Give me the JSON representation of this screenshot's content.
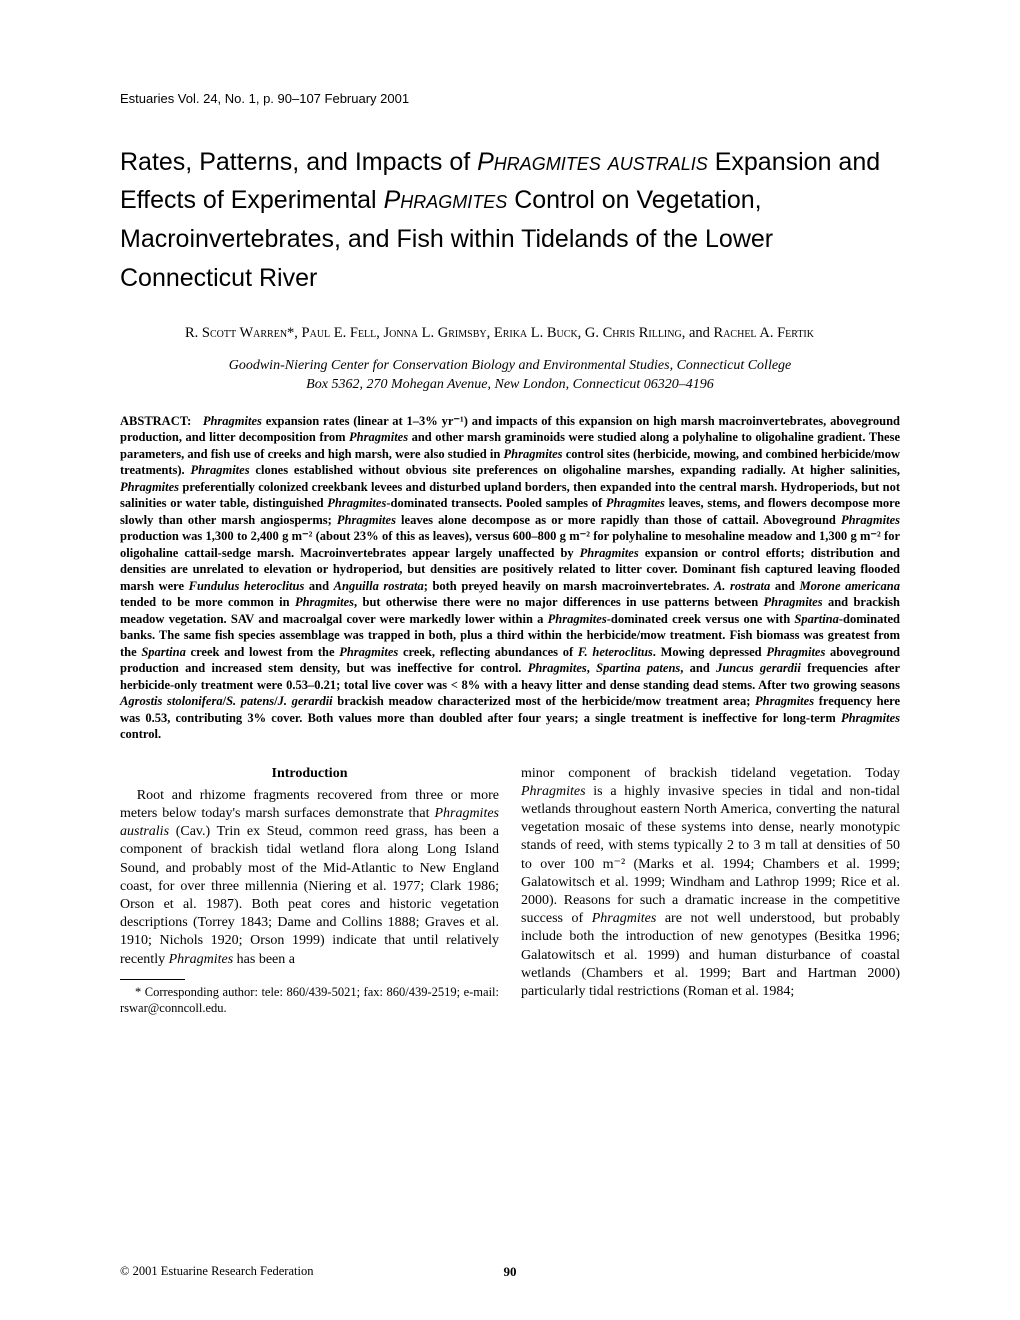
{
  "running_head": "Estuaries   Vol. 24, No. 1, p. 90–107   February 2001",
  "title_parts": {
    "p1": "Rates, Patterns, and Impacts of ",
    "sc1": "Phragmites australis",
    "p2": " Expansion and Effects of Experimental ",
    "sc2": "Phragmites",
    "p3": " Control on Vegetation, Macroinvertebrates, and Fish within Tidelands of the Lower Connecticut River"
  },
  "authors_line": "R. Scott Warren*, Paul E. Fell, Jonna L. Grimsby, Erika L. Buck, G. Chris Rilling, ",
  "authors_and": "and",
  "authors_last": " Rachel A. Fertik",
  "affiliation_l1": "Goodwin-Niering Center for Conservation Biology and Environmental Studies, Connecticut College",
  "affiliation_l2": "Box 5362, 270 Mohegan Avenue, New London, Connecticut 06320–4196",
  "abstract_label": "ABSTRACT:",
  "abstract_body": "Phragmites expansion rates (linear at 1–3% yr⁻¹) and impacts of this expansion on high marsh macroinvertebrates, aboveground production, and litter decomposition from Phragmites and other marsh graminoids were studied along a polyhaline to oligohaline gradient. These parameters, and fish use of creeks and high marsh, were also studied in Phragmites control sites (herbicide, mowing, and combined herbicide/mow treatments). Phragmites clones established without obvious site preferences on oligohaline marshes, expanding radially. At higher salinities, Phragmites preferentially colonized creekbank levees and disturbed upland borders, then expanded into the central marsh. Hydroperiods, but not salinities or water table, distinguished Phragmites-dominated transects. Pooled samples of Phragmites leaves, stems, and flowers decompose more slowly than other marsh angiosperms; Phragmites leaves alone decompose as or more rapidly than those of cattail. Aboveground Phragmites production was 1,300 to 2,400 g m⁻² (about 23% of this as leaves), versus 600–800 g m⁻² for polyhaline to mesohaline meadow and 1,300 g m⁻² for oligohaline cattail-sedge marsh. Macroinvertebrates appear largely unaffected by Phragmites expansion or control efforts; distribution and densities are unrelated to elevation or hydroperiod, but densities are positively related to litter cover. Dominant fish captured leaving flooded marsh were Fundulus heteroclitus and Anguilla rostrata; both preyed heavily on marsh macroinvertebrates. A. rostrata and Morone americana tended to be more common in Phragmites, but otherwise there were no major differences in use patterns between Phragmites and brackish meadow vegetation. SAV and macroalgal cover were markedly lower within a Phragmites-dominated creek versus one with Spartina-dominated banks. The same fish species assemblage was trapped in both, plus a third within the herbicide/mow treatment. Fish biomass was greatest from the Spartina creek and lowest from the Phragmites creek, reflecting abundances of F. heteroclitus. Mowing depressed Phragmites aboveground production and increased stem density, but was ineffective for control. Phragmites, Spartina patens, and Juncus gerardii frequencies after herbicide-only treatment were 0.53–0.21; total live cover was < 8% with a heavy litter and dense standing dead stems. After two growing seasons Agrostis stolonifera/S. patens/J. gerardii brackish meadow characterized most of the herbicide/mow treatment area; Phragmites frequency here was 0.53, contributing 3% cover. Both values more than doubled after four years; a single treatment is ineffective for long-term Phragmites control.",
  "intro_head": "Introduction",
  "intro_p1": "Root and rhizome fragments recovered from three or more meters below today's marsh surfaces demonstrate that Phragmites australis (Cav.) Trin ex Steud, common reed grass, has been a component of brackish tidal wetland flora along Long Island Sound, and probably most of the Mid-Atlantic to New England coast, for over three millennia (Niering et al. 1977; Clark 1986; Orson et al. 1987). Both peat cores and historic vegetation descriptions (Torrey 1843; Dame and Collins 1888; Graves et al. 1910; Nichols 1920; Orson 1999) indicate that until relatively recently Phragmites has been a",
  "intro_p2": "minor component of brackish tideland vegetation. Today Phragmites is a highly invasive species in tidal and non-tidal wetlands throughout eastern North America, converting the natural vegetation mosaic of these systems into dense, nearly monotypic stands of reed, with stems typically 2 to 3 m tall at densities of 50 to over 100 m⁻² (Marks et al. 1994; Chambers et al. 1999; Galatowitsch et al. 1999; Windham and Lathrop 1999; Rice et al. 2000). Reasons for such a dramatic increase in the competitive success of Phragmites are not well understood, but probably include both the introduction of new genotypes (Besitka 1996; Galatowitsch et al. 1999) and human disturbance of coastal wetlands (Chambers et al. 1999; Bart and Hartman 2000) particularly tidal restrictions (Roman et al. 1984;",
  "footnote": "* Corresponding author: tele: 860/439-5021; fax: 860/439-2519; e-mail: rswar@conncoll.edu.",
  "copyright": "© 2001 Estuarine Research Federation",
  "page_no": "90"
}
